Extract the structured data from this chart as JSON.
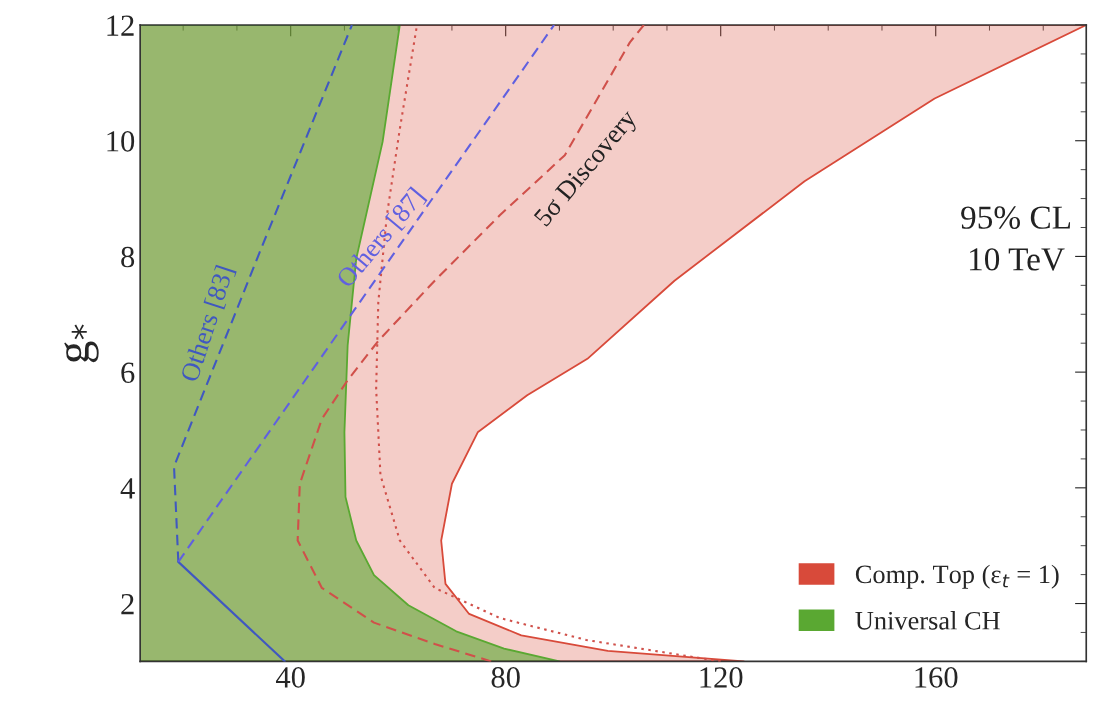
{
  "chart_data": {
    "type": "area",
    "ylabel": "g$_{*}$",
    "xlim": [
      12,
      188
    ],
    "ylim": [
      1,
      12
    ],
    "xticks": [
      40,
      80,
      120,
      160
    ],
    "yticks": [
      2,
      4,
      6,
      8,
      10,
      12
    ],
    "legend": "bottom right",
    "grid": false,
    "series": [
      {
        "name": "Comp. Top (ε$_{t}$ = 1)",
        "color": "#d84a3a",
        "x": [
          12,
          124.3,
          99,
          82.9,
          73.2,
          68.8,
          68,
          70,
          74.8,
          84,
          95.2,
          111.4,
          135.6,
          159.8,
          188,
          12
        ],
        "values": [
          1,
          1.0,
          1.18,
          1.45,
          1.82,
          2.34,
          3.09,
          4.07,
          4.96,
          5.6,
          6.23,
          7.58,
          9.3,
          10.73,
          12,
          12
        ]
      },
      {
        "name": "Universal CH",
        "color": "#5aa832",
        "x": [
          12,
          90,
          79.7,
          70.8,
          61.9,
          55.5,
          52.2,
          50.2,
          50,
          50.6,
          52.2,
          57.1,
          60.3,
          12
        ],
        "values": [
          1,
          1.0,
          1.22,
          1.52,
          1.97,
          2.49,
          3.09,
          3.84,
          4.96,
          6.46,
          7.96,
          9.98,
          12,
          12
        ]
      },
      {
        "type": "line",
        "line_style": "dotted",
        "color": "#d0504a",
        "x": [
          120,
          95,
          78.9,
          66.8,
          60.3,
          56.7,
          55.9,
          56.3,
          57.9,
          60.3,
          63.5
        ],
        "values": [
          1.0,
          1.37,
          1.75,
          2.27,
          3.09,
          4.22,
          5.71,
          7.21,
          8.71,
          10.2,
          12
        ]
      },
      {
        "type": "line",
        "line_style": "dashed",
        "color": "#d0504a",
        "x": [
          77.3,
          66.8,
          55.5,
          45.8,
          41.3,
          41.7,
          45.8,
          50.6,
          56.3,
          66.8,
          78.9,
          91,
          103.1,
          105.7
        ],
        "values": [
          1.0,
          1.3,
          1.67,
          2.27,
          3.09,
          4.07,
          5.19,
          5.86,
          6.54,
          7.58,
          8.71,
          9.75,
          11.7,
          12
        ]
      },
      {
        "type": "line",
        "line_style": "solid",
        "color": "#4058c0",
        "x": [
          38.9,
          19.1
        ],
        "values": [
          1.0,
          2.72
        ]
      },
      {
        "type": "line",
        "line_style": "dashed",
        "color": "#4058c0",
        "x": [
          19.1,
          18.3,
          34.4,
          51.4
        ],
        "values": [
          2.72,
          4.37,
          8.11,
          12
        ]
      },
      {
        "type": "line",
        "line_style": "dashed",
        "color": "#6060e0",
        "x": [
          19.1,
          50.6,
          89
        ],
        "values": [
          2.72,
          6.91,
          12
        ]
      }
    ],
    "annotations": [
      "Others [83]",
      "Others [87]",
      "5σ Discovery",
      "95% CL\n10 TeV"
    ]
  }
}
